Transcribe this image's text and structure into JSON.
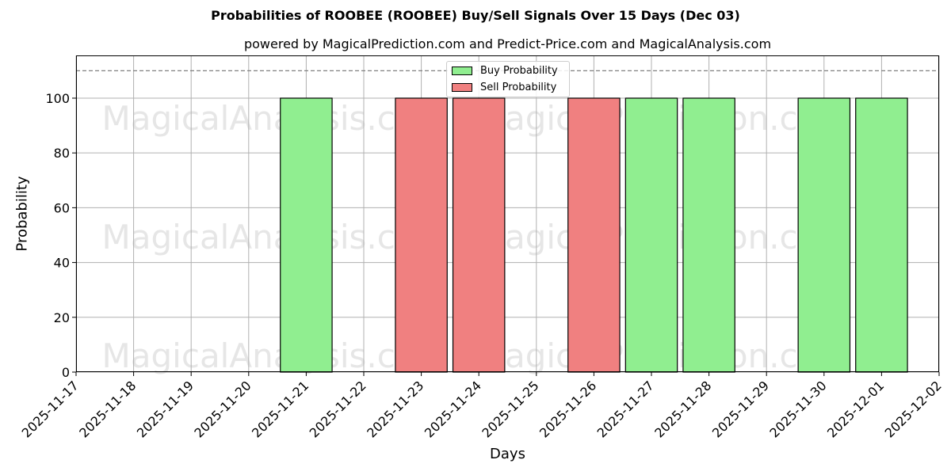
{
  "title": "Probabilities of ROOBEE (ROOBEE) Buy/Sell Signals Over 15 Days (Dec 03)",
  "subtitle": "powered by MagicalPrediction.com and Predict-Price.com and MagicalAnalysis.com",
  "colors": {
    "buy": "#90ee90",
    "sell": "#f08080",
    "edge": "#000000",
    "grid": "#b0b0b0",
    "threshold": "#808080",
    "watermark": "#e6e6e6"
  },
  "legend": {
    "buy_label": "Buy Probability",
    "sell_label": "Sell Probability"
  },
  "watermarks": [
    "MagicalAnalysis.com",
    "MagicalPrediction.com"
  ],
  "chart_data": {
    "type": "bar",
    "title": "Probabilities of ROOBEE (ROOBEE) Buy/Sell Signals Over 15 Days (Dec 03)",
    "subtitle": "powered by MagicalPrediction.com and Predict-Price.com and MagicalAnalysis.com",
    "xlabel": "Days",
    "ylabel": "Probability",
    "ylim": [
      0,
      115.6
    ],
    "yticks": [
      0,
      20,
      40,
      60,
      80,
      100
    ],
    "xticks": [
      "2025-11-17",
      "2025-11-18",
      "2025-11-19",
      "2025-11-20",
      "2025-11-21",
      "2025-11-22",
      "2025-11-23",
      "2025-11-24",
      "2025-11-25",
      "2025-11-26",
      "2025-11-27",
      "2025-11-28",
      "2025-11-29",
      "2025-11-30",
      "2025-12-01",
      "2025-12-02"
    ],
    "threshold_line": 110,
    "grid": true,
    "legend_position": "upper center",
    "series": [
      {
        "name": "Buy Probability",
        "color": "#90ee90",
        "points": [
          {
            "x": "2025-11-21",
            "y": 100
          },
          {
            "x": "2025-11-27",
            "y": 100
          },
          {
            "x": "2025-11-28",
            "y": 100
          },
          {
            "x": "2025-11-30",
            "y": 100
          },
          {
            "x": "2025-12-01",
            "y": 100
          }
        ]
      },
      {
        "name": "Sell Probability",
        "color": "#f08080",
        "points": [
          {
            "x": "2025-11-23",
            "y": 100
          },
          {
            "x": "2025-11-24",
            "y": 100
          },
          {
            "x": "2025-11-26",
            "y": 100
          }
        ]
      }
    ]
  }
}
